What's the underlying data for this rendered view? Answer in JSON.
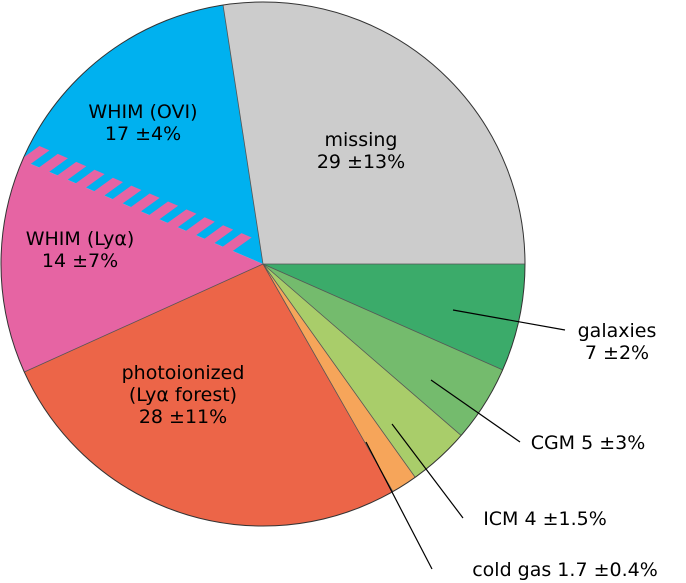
{
  "chart_data": {
    "type": "pie",
    "title": "",
    "start_angle_deg": 0,
    "direction": "clockwise",
    "slices": [
      {
        "label": "galaxies",
        "value": 7,
        "error": "±2%",
        "text_lines": [
          "galaxies",
          "7 ±2%"
        ],
        "color": "#3bab6a",
        "label_style": "callout"
      },
      {
        "label": "CGM",
        "value": 5,
        "error": "±3%",
        "text_lines": [
          "CGM  5 ±3%"
        ],
        "color": "#74bb6d",
        "label_style": "callout"
      },
      {
        "label": "ICM",
        "value": 4,
        "error": "±1.5%",
        "text_lines": [
          "ICM  4 ±1.5%"
        ],
        "color": "#a9cd6a",
        "label_style": "callout"
      },
      {
        "label": "cold gas",
        "value": 1.7,
        "error": "±0.4%",
        "text_lines": [
          "cold gas  1.7 ±0.4%"
        ],
        "color": "#f6a55a",
        "label_style": "callout"
      },
      {
        "label": "photoionized (Lyα forest)",
        "value": 28,
        "error": "±11%",
        "text_lines": [
          "photoionized",
          "(Lyα forest)",
          "28 ±11%"
        ],
        "color": "#ec6548",
        "label_style": "inside"
      },
      {
        "label": "WHIM (Lyα)",
        "value": 14,
        "error": "±7%",
        "text_lines": [
          "WHIM (Lyα)",
          "14 ±7%"
        ],
        "color": "#e664a3",
        "label_style": "inside"
      },
      {
        "label": "WHIM (OVI)",
        "value": 17,
        "error": "±4%",
        "text_lines": [
          "WHIM (OVI)",
          "17 ±4%"
        ],
        "color": "#00b1ef",
        "label_style": "inside",
        "hatched_boundary": true
      },
      {
        "label": "missing",
        "value": 29,
        "error": "±13%",
        "text_lines": [
          "missing",
          "29 ±13%"
        ],
        "color": "#cccccc",
        "label_style": "inside"
      }
    ]
  }
}
